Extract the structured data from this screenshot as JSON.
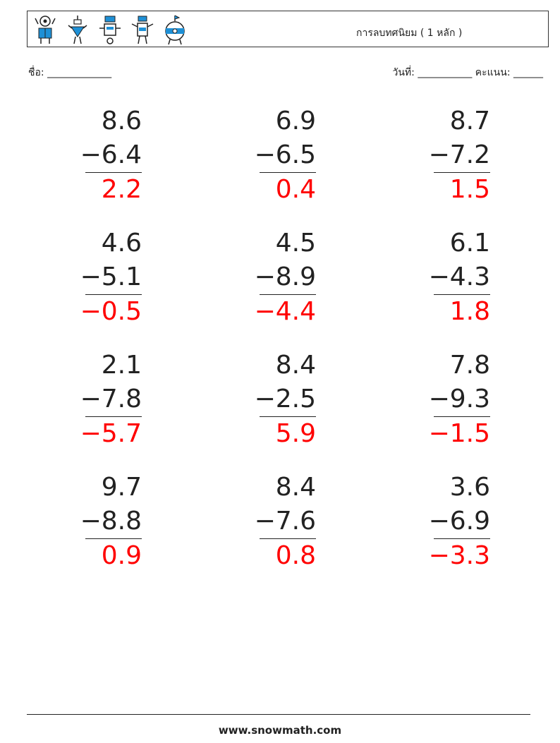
{
  "header": {
    "title": "การลบทศนิยม ( 1 หลัก )",
    "robot_icons": [
      "robot-1-icon",
      "robot-2-icon",
      "robot-3-icon",
      "robot-4-icon",
      "robot-5-icon"
    ]
  },
  "info": {
    "name_label": "ชื่อ: _____________",
    "date_score_label": "วันที่: ___________  คะแนน: ______"
  },
  "colors": {
    "answer": "#ff0000",
    "icon_blue": "#1e90d6",
    "text": "#222222"
  },
  "problems": [
    {
      "a": "8.6",
      "b": "−6.4",
      "answer": "2.2"
    },
    {
      "a": "6.9",
      "b": "−6.5",
      "answer": "0.4"
    },
    {
      "a": "8.7",
      "b": "−7.2",
      "answer": "1.5"
    },
    {
      "a": "4.6",
      "b": "−5.1",
      "answer": "−0.5"
    },
    {
      "a": "4.5",
      "b": "−8.9",
      "answer": "−4.4"
    },
    {
      "a": "6.1",
      "b": "−4.3",
      "answer": "1.8"
    },
    {
      "a": "2.1",
      "b": "−7.8",
      "answer": "−5.7"
    },
    {
      "a": "8.4",
      "b": "−2.5",
      "answer": "5.9"
    },
    {
      "a": "7.8",
      "b": "−9.3",
      "answer": "−1.5"
    },
    {
      "a": "9.7",
      "b": "−8.8",
      "answer": "0.9"
    },
    {
      "a": "8.4",
      "b": "−7.6",
      "answer": "0.8"
    },
    {
      "a": "3.6",
      "b": "−6.9",
      "answer": "−3.3"
    }
  ],
  "footer": {
    "site": "www.snowmath.com"
  }
}
